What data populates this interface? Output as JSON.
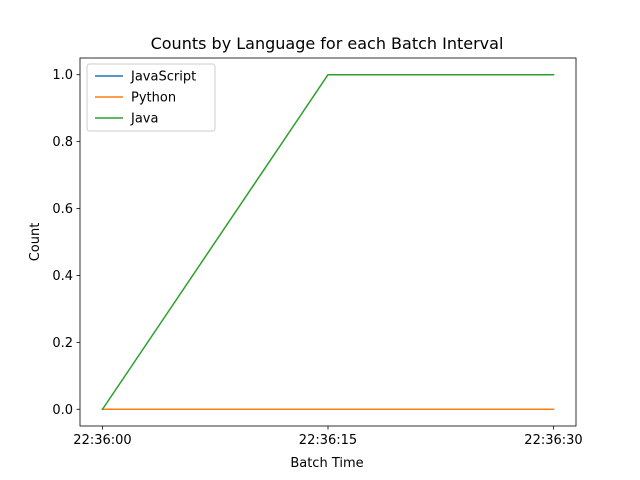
{
  "chart_data": {
    "type": "line",
    "title": "Counts by Language for each Batch Interval",
    "xlabel": "Batch Time",
    "ylabel": "Count",
    "x": [
      "22:36:00",
      "22:36:15",
      "22:36:30"
    ],
    "x_ticks": [
      "22:36:00",
      "22:36:15",
      "22:36:30"
    ],
    "y_ticks": [
      "0.0",
      "0.2",
      "0.4",
      "0.6",
      "0.8",
      "1.0"
    ],
    "ylim": [
      -0.05,
      1.05
    ],
    "legend_position": "top-left",
    "grid": false,
    "series": [
      {
        "name": "JavaScript",
        "values": [
          0,
          0,
          0
        ],
        "color": "#1f77b4"
      },
      {
        "name": "Python",
        "values": [
          0,
          0,
          0
        ],
        "color": "#ff7f0e"
      },
      {
        "name": "Java",
        "values": [
          0,
          1,
          1
        ],
        "color": "#2ca02c"
      }
    ]
  }
}
